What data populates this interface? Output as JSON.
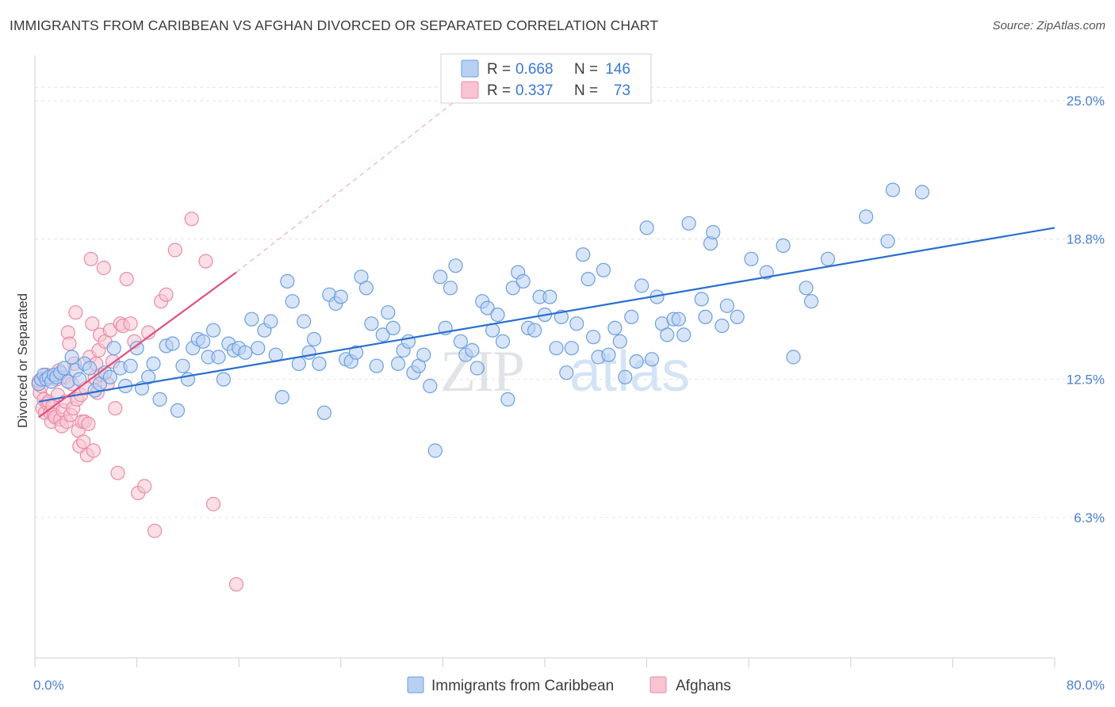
{
  "title": "IMMIGRANTS FROM CARIBBEAN VS AFGHAN DIVORCED OR SEPARATED CORRELATION CHART",
  "source": "Source: ZipAtlas.com",
  "watermark": {
    "zip": "ZIP",
    "atlas": "atlas"
  },
  "legend": {
    "r_label": "R =",
    "n_label": "N =",
    "entries": [
      {
        "r": "0.668",
        "n": "146",
        "fill": "#b8d0f2",
        "stroke": "#6b9fe0"
      },
      {
        "r": "0.337",
        "n": "73",
        "fill": "#f8c4d2",
        "stroke": "#ea8aa8"
      }
    ]
  },
  "chart_data": {
    "type": "scatter",
    "xlabel": "",
    "ylabel": "Divorced or Separated",
    "xlim": [
      0,
      80
    ],
    "ylim": [
      0,
      26.5
    ],
    "x_tick_labels": [
      "0.0%",
      "80.0%"
    ],
    "y_ticks": [
      6.3,
      12.5,
      18.8,
      25.0
    ],
    "y_tick_labels": [
      "6.3%",
      "12.5%",
      "18.8%",
      "25.0%"
    ],
    "grid": "horizontal dashed",
    "legend_position": "top-center",
    "series": [
      {
        "name": "Immigrants from Caribbean",
        "color": "#6b9fe0",
        "fill": "#b8d0f2",
        "trend": {
          "x": [
            0.3,
            80
          ],
          "y": [
            11.5,
            19.3
          ],
          "color": "#2a6ecf"
        },
        "points": [
          [
            0.3,
            12.3
          ],
          [
            0.5,
            12.5
          ],
          [
            0.7,
            12.7
          ],
          [
            0.9,
            12.5
          ],
          [
            1.1,
            12.6
          ],
          [
            1.3,
            12.4
          ],
          [
            1.5,
            12.7
          ],
          [
            1.7,
            12.6
          ],
          [
            2.0,
            12.8
          ],
          [
            2.3,
            13.0
          ],
          [
            2.6,
            12.4
          ],
          [
            2.9,
            13.5
          ],
          [
            3.2,
            12.9
          ],
          [
            3.5,
            12.5
          ],
          [
            3.9,
            13.2
          ],
          [
            4.3,
            13.0
          ],
          [
            4.7,
            12.0
          ],
          [
            5.1,
            12.3
          ],
          [
            5.5,
            12.8
          ],
          [
            5.9,
            12.6
          ],
          [
            6.2,
            13.9
          ],
          [
            6.7,
            13.0
          ],
          [
            7.1,
            12.2
          ],
          [
            7.5,
            13.1
          ],
          [
            8.0,
            13.9
          ],
          [
            8.4,
            12.1
          ],
          [
            8.9,
            12.6
          ],
          [
            9.3,
            13.2
          ],
          [
            9.8,
            11.6
          ],
          [
            10.3,
            14.0
          ],
          [
            10.8,
            14.1
          ],
          [
            11.2,
            11.1
          ],
          [
            11.6,
            13.1
          ],
          [
            12.0,
            12.5
          ],
          [
            12.4,
            13.9
          ],
          [
            12.8,
            14.3
          ],
          [
            13.2,
            14.2
          ],
          [
            13.6,
            13.5
          ],
          [
            14.0,
            14.7
          ],
          [
            14.4,
            13.5
          ],
          [
            14.8,
            12.5
          ],
          [
            15.2,
            14.1
          ],
          [
            15.6,
            13.8
          ],
          [
            16.0,
            13.9
          ],
          [
            16.5,
            13.7
          ],
          [
            17.0,
            15.2
          ],
          [
            17.5,
            13.9
          ],
          [
            18.0,
            14.7
          ],
          [
            18.5,
            15.1
          ],
          [
            18.9,
            13.6
          ],
          [
            19.4,
            11.7
          ],
          [
            19.8,
            16.9
          ],
          [
            20.2,
            16.0
          ],
          [
            20.7,
            13.2
          ],
          [
            21.1,
            15.1
          ],
          [
            21.5,
            13.7
          ],
          [
            21.9,
            14.3
          ],
          [
            22.3,
            13.2
          ],
          [
            22.7,
            11.0
          ],
          [
            23.1,
            16.3
          ],
          [
            23.6,
            15.9
          ],
          [
            24.0,
            16.2
          ],
          [
            24.4,
            13.4
          ],
          [
            24.8,
            13.3
          ],
          [
            25.2,
            13.7
          ],
          [
            25.6,
            17.1
          ],
          [
            26.0,
            16.6
          ],
          [
            26.4,
            15.0
          ],
          [
            26.8,
            13.1
          ],
          [
            27.3,
            14.5
          ],
          [
            27.7,
            15.5
          ],
          [
            28.1,
            14.8
          ],
          [
            28.5,
            13.2
          ],
          [
            28.9,
            13.8
          ],
          [
            29.3,
            14.2
          ],
          [
            29.7,
            12.8
          ],
          [
            30.1,
            13.1
          ],
          [
            30.5,
            13.6
          ],
          [
            31.0,
            12.2
          ],
          [
            31.4,
            9.3
          ],
          [
            31.8,
            17.1
          ],
          [
            32.2,
            14.8
          ],
          [
            32.6,
            16.6
          ],
          [
            33.0,
            17.6
          ],
          [
            33.4,
            14.2
          ],
          [
            33.8,
            13.6
          ],
          [
            34.3,
            13.8
          ],
          [
            34.7,
            13.0
          ],
          [
            35.1,
            16.0
          ],
          [
            35.5,
            15.7
          ],
          [
            35.9,
            14.7
          ],
          [
            36.3,
            15.4
          ],
          [
            36.7,
            14.2
          ],
          [
            37.1,
            11.6
          ],
          [
            37.5,
            16.6
          ],
          [
            37.9,
            17.3
          ],
          [
            38.3,
            16.9
          ],
          [
            38.7,
            14.8
          ],
          [
            39.2,
            14.7
          ],
          [
            39.6,
            16.2
          ],
          [
            40.0,
            15.4
          ],
          [
            40.4,
            16.2
          ],
          [
            40.9,
            13.9
          ],
          [
            41.3,
            15.3
          ],
          [
            41.7,
            12.8
          ],
          [
            42.1,
            13.9
          ],
          [
            42.5,
            15.0
          ],
          [
            43.0,
            18.1
          ],
          [
            43.4,
            17.0
          ],
          [
            43.8,
            14.4
          ],
          [
            44.2,
            13.5
          ],
          [
            44.6,
            17.4
          ],
          [
            45.0,
            13.6
          ],
          [
            45.5,
            14.8
          ],
          [
            45.9,
            14.2
          ],
          [
            46.3,
            12.6
          ],
          [
            46.8,
            15.3
          ],
          [
            47.2,
            13.3
          ],
          [
            47.6,
            16.7
          ],
          [
            48.0,
            19.3
          ],
          [
            48.4,
            13.4
          ],
          [
            48.8,
            16.2
          ],
          [
            49.2,
            15.0
          ],
          [
            49.6,
            14.5
          ],
          [
            50.1,
            15.2
          ],
          [
            50.5,
            15.2
          ],
          [
            50.9,
            14.5
          ],
          [
            51.3,
            19.5
          ],
          [
            52.3,
            16.1
          ],
          [
            52.6,
            15.3
          ],
          [
            53.0,
            18.6
          ],
          [
            53.2,
            19.1
          ],
          [
            53.9,
            14.9
          ],
          [
            54.3,
            15.8
          ],
          [
            55.1,
            15.3
          ],
          [
            56.2,
            17.9
          ],
          [
            57.4,
            17.3
          ],
          [
            58.7,
            18.5
          ],
          [
            59.5,
            13.5
          ],
          [
            60.5,
            16.6
          ],
          [
            60.9,
            16.0
          ],
          [
            62.2,
            17.9
          ],
          [
            65.2,
            19.8
          ],
          [
            66.9,
            18.7
          ],
          [
            67.3,
            21.0
          ],
          [
            69.6,
            20.9
          ]
        ]
      },
      {
        "name": "Afghans",
        "color": "#ea8aa8",
        "fill": "#f8c4d2",
        "trend": {
          "x": [
            0.3,
            15.8
          ],
          "y": [
            10.8,
            17.3
          ],
          "color": "#e0507e"
        },
        "trend_dashed": {
          "x": [
            15.8,
            33.0
          ],
          "y": [
            17.3,
            25.0
          ]
        },
        "points": [
          [
            0.3,
            12.4
          ],
          [
            0.4,
            11.9
          ],
          [
            0.5,
            12.2
          ],
          [
            0.6,
            11.2
          ],
          [
            0.7,
            11.6
          ],
          [
            0.8,
            11.0
          ],
          [
            0.9,
            12.7
          ],
          [
            1.0,
            11.4
          ],
          [
            1.1,
            11.5
          ],
          [
            1.2,
            11.0
          ],
          [
            1.3,
            10.6
          ],
          [
            1.4,
            11.3
          ],
          [
            1.5,
            10.9
          ],
          [
            1.6,
            10.8
          ],
          [
            1.7,
            12.5
          ],
          [
            1.8,
            11.8
          ],
          [
            1.9,
            12.9
          ],
          [
            2.0,
            10.7
          ],
          [
            2.1,
            10.4
          ],
          [
            2.2,
            11.1
          ],
          [
            2.3,
            12.6
          ],
          [
            2.4,
            11.5
          ],
          [
            2.5,
            10.6
          ],
          [
            2.6,
            14.6
          ],
          [
            2.7,
            14.1
          ],
          [
            2.8,
            10.9
          ],
          [
            2.9,
            12.3
          ],
          [
            3.0,
            11.2
          ],
          [
            3.1,
            13.2
          ],
          [
            3.2,
            15.5
          ],
          [
            3.3,
            11.6
          ],
          [
            3.4,
            10.2
          ],
          [
            3.5,
            9.5
          ],
          [
            3.6,
            11.8
          ],
          [
            3.7,
            10.6
          ],
          [
            3.8,
            9.7
          ],
          [
            3.9,
            10.6
          ],
          [
            4.0,
            12.1
          ],
          [
            4.1,
            9.1
          ],
          [
            4.2,
            10.5
          ],
          [
            4.3,
            13.5
          ],
          [
            4.4,
            17.9
          ],
          [
            4.5,
            15.0
          ],
          [
            4.6,
            9.3
          ],
          [
            4.7,
            12.6
          ],
          [
            4.8,
            13.2
          ],
          [
            4.9,
            11.9
          ],
          [
            5.0,
            13.8
          ],
          [
            5.1,
            14.5
          ],
          [
            5.2,
            12.7
          ],
          [
            5.4,
            17.5
          ],
          [
            5.5,
            14.2
          ],
          [
            5.7,
            12.3
          ],
          [
            5.9,
            14.7
          ],
          [
            6.1,
            13.3
          ],
          [
            6.3,
            11.2
          ],
          [
            6.5,
            8.3
          ],
          [
            6.7,
            15.0
          ],
          [
            6.9,
            14.9
          ],
          [
            7.2,
            17.0
          ],
          [
            7.5,
            15.0
          ],
          [
            7.8,
            14.2
          ],
          [
            8.1,
            7.4
          ],
          [
            8.6,
            7.7
          ],
          [
            8.9,
            14.6
          ],
          [
            9.4,
            5.7
          ],
          [
            9.9,
            16.0
          ],
          [
            10.3,
            16.3
          ],
          [
            11.0,
            18.3
          ],
          [
            12.3,
            19.7
          ],
          [
            13.4,
            17.8
          ],
          [
            14.0,
            6.9
          ],
          [
            15.8,
            3.3
          ]
        ]
      }
    ]
  },
  "bottom_legend": [
    "Immigrants from Caribbean",
    "Afghans"
  ]
}
